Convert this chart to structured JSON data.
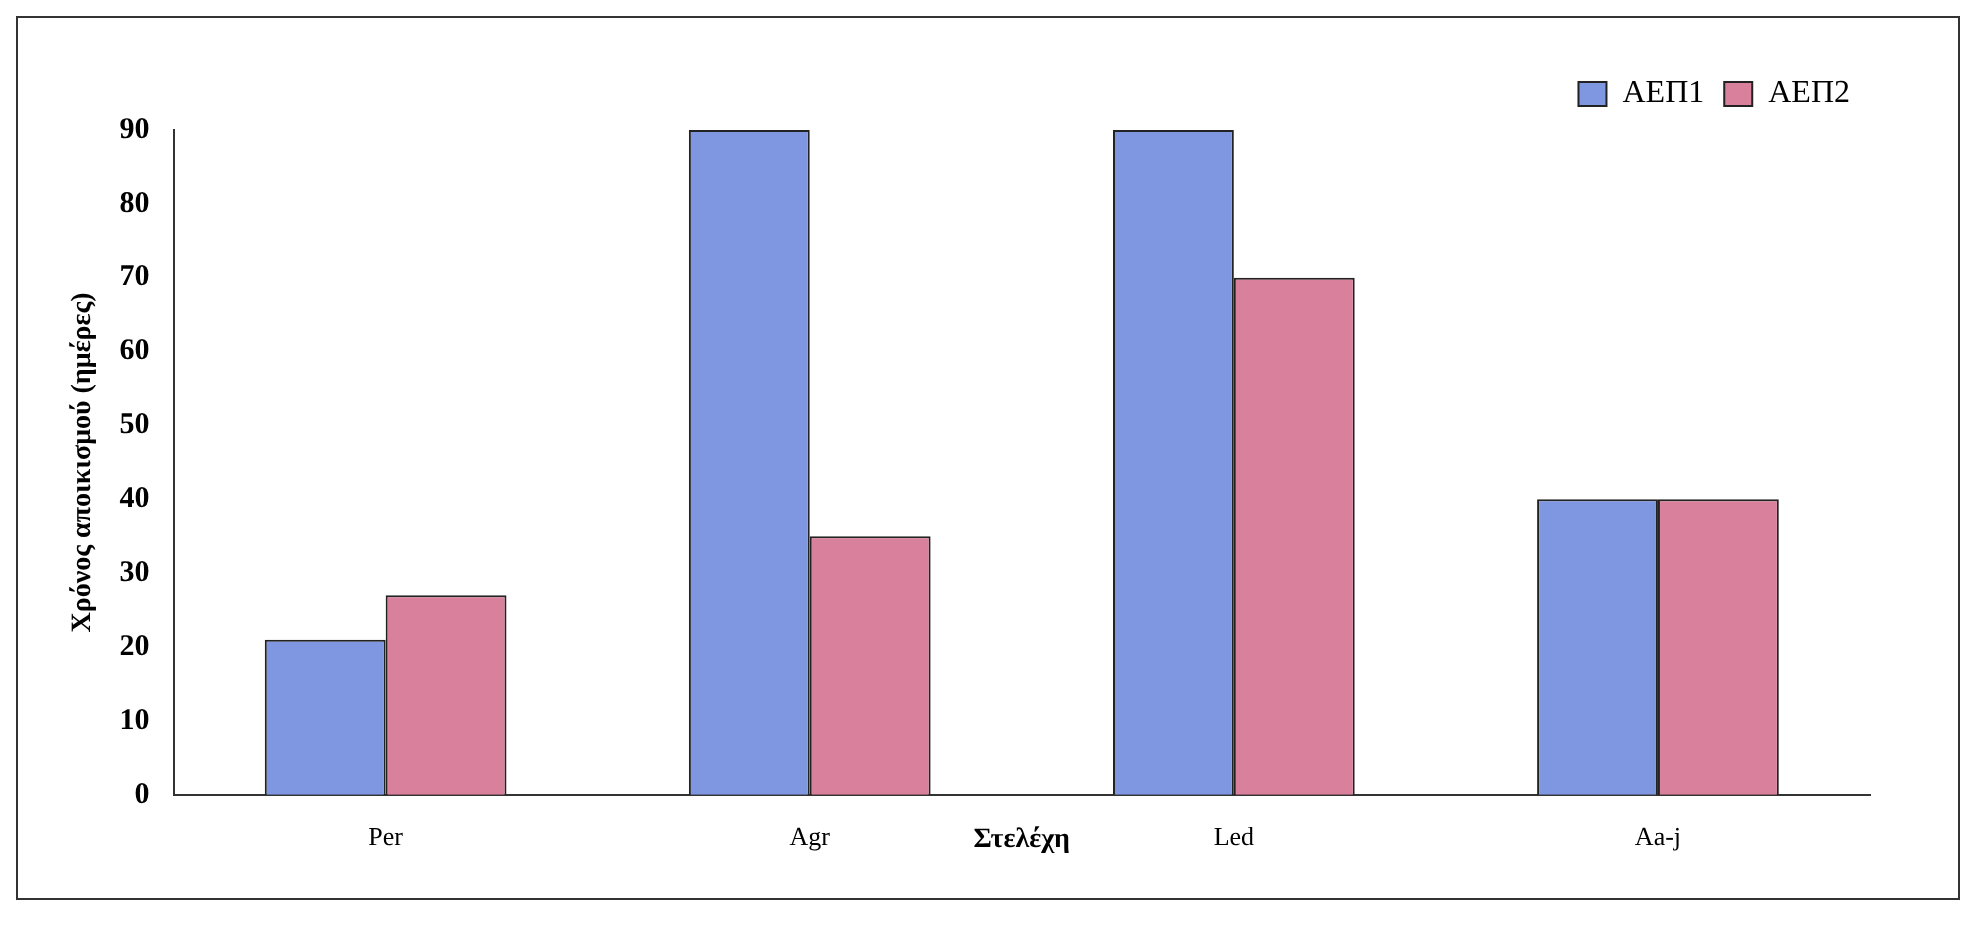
{
  "chart_data": {
    "type": "bar",
    "xlabel": "Στελέχη",
    "ylabel": "Χρόνος αποικισμού (ημέρες)",
    "categories": [
      "Per",
      "Agr",
      "Led",
      "Aa-j"
    ],
    "series": [
      {
        "name": "ΑΕΠ1",
        "color": "#7f96e0",
        "values": [
          21,
          90,
          90,
          40
        ]
      },
      {
        "name": "ΑΕΠ2",
        "color": "#d9809c",
        "values": [
          27,
          35,
          70,
          40
        ]
      }
    ],
    "ylim": [
      0,
      90
    ],
    "yticks": [
      0,
      10,
      20,
      30,
      40,
      50,
      60,
      70,
      80,
      90
    ],
    "grid": false,
    "legend": "top right"
  }
}
